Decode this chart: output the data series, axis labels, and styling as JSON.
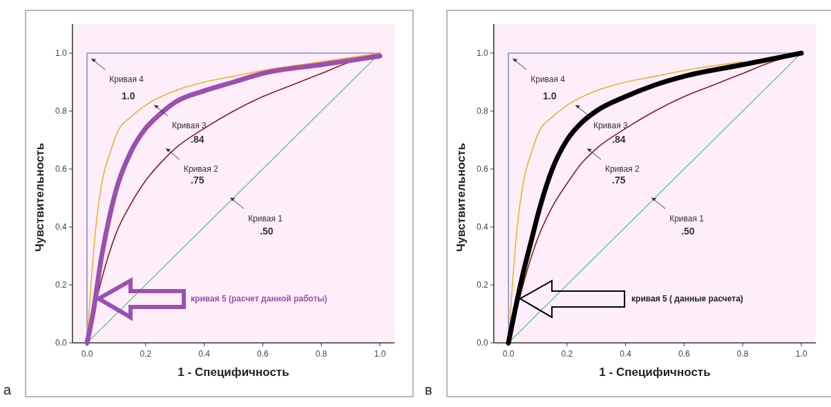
{
  "chart_data": [
    {
      "type": "line",
      "xlabel": "1 - Специфичность",
      "ylabel": "Чувствительность",
      "xlim": [
        -0.05,
        1.05
      ],
      "ylim": [
        0,
        1.1
      ],
      "xticks": [
        {
          "value": 0,
          "label": "0.0"
        },
        {
          "value": 0.2,
          "label": "0.2"
        },
        {
          "value": 0.4,
          "label": "0.4"
        },
        {
          "value": 0.6,
          "label": "0.6"
        },
        {
          "value": 0.8,
          "label": "0.8"
        },
        {
          "value": 1,
          "label": "1.0"
        }
      ],
      "yticks": [
        {
          "value": 0,
          "label": "0.0"
        },
        {
          "value": 0.2,
          "label": "0.2"
        },
        {
          "value": 0.4,
          "label": "0.4"
        },
        {
          "value": 0.6,
          "label": "0.6"
        },
        {
          "value": 0.8,
          "label": "0.8"
        },
        {
          "value": 1,
          "label": "1.0"
        }
      ],
      "line_style": "solid",
      "series": [
        {
          "color": "#6fcf8f",
          "x": [
            0,
            1
          ],
          "values": [
            0,
            1
          ]
        },
        {
          "color": "#7f90d0",
          "x": [
            0,
            0,
            1
          ],
          "values": [
            0,
            1,
            1
          ]
        },
        {
          "color": "#8b1a1a",
          "x": [
            0,
            0.02,
            0.05,
            0.1,
            0.15,
            0.2,
            0.25,
            0.3,
            0.4,
            0.5,
            0.6,
            0.7,
            0.8,
            0.9,
            1
          ],
          "values": [
            0,
            null,
            0.22,
            0.38,
            0.48,
            0.56,
            0.62,
            0.67,
            0.74,
            0.8,
            0.85,
            0.89,
            0.93,
            0.97,
            1
          ]
        },
        {
          "color": "#f0b030",
          "x": [
            0,
            0.01,
            0.03,
            0.05,
            0.08,
            0.1,
            0.15,
            0.2,
            0.3,
            0.4,
            0.5,
            0.6,
            0.8,
            1
          ],
          "values": [
            0,
            0.15,
            0.4,
            0.55,
            0.66,
            0.72,
            0.78,
            0.82,
            0.87,
            0.9,
            0.92,
            0.94,
            0.97,
            1
          ]
        },
        {
          "color": "#9b4fb0",
          "x": [
            0,
            0.02,
            0.05,
            0.08,
            0.1,
            0.15,
            0.2,
            0.25,
            0.3,
            0.4,
            0.5,
            0.6,
            0.8,
            1
          ],
          "values": [
            0,
            0.1,
            0.3,
            0.45,
            0.53,
            0.66,
            0.74,
            0.79,
            0.83,
            0.87,
            0.9,
            0.93,
            0.96,
            0.99
          ]
        }
      ],
      "annotations": [
        "Кривая 4",
        "1.0",
        "Кривая 3",
        ".84",
        "Кривая 2",
        ".75",
        "Кривая 1",
        ".50",
        "кривая 5 (расчет данной работы)",
        "а"
      ]
    },
    {
      "type": "line",
      "xlabel": "1 - Специфичность",
      "ylabel": "Чувствительность",
      "xlim": [
        -0.05,
        1.05
      ],
      "ylim": [
        0,
        1.1
      ],
      "xticks": [
        {
          "value": 0,
          "label": "0.0"
        },
        {
          "value": 0.2,
          "label": "0.2"
        },
        {
          "value": 0.4,
          "label": "0.4"
        },
        {
          "value": 0.6,
          "label": "0.6"
        },
        {
          "value": 0.8,
          "label": "0.8"
        },
        {
          "value": 1,
          "label": "1.0"
        }
      ],
      "yticks": [
        {
          "value": 0,
          "label": "0.0"
        },
        {
          "value": 0.2,
          "label": "0.2"
        },
        {
          "value": 0.4,
          "label": "0.4"
        },
        {
          "value": 0.6,
          "label": "0.6"
        },
        {
          "value": 0.8,
          "label": "0.8"
        },
        {
          "value": 1,
          "label": "1.0"
        }
      ],
      "line_style": "solid",
      "series": [
        {
          "color": "#6fcf8f",
          "x": [
            0,
            1
          ],
          "values": [
            0,
            1
          ]
        },
        {
          "color": "#7f90d0",
          "x": [
            0,
            0,
            1
          ],
          "values": [
            0,
            1,
            1
          ]
        },
        {
          "color": "#8b1a1a",
          "x": [
            0,
            0.02,
            0.05,
            0.1,
            0.15,
            0.2,
            0.25,
            0.3,
            0.4,
            0.5,
            0.6,
            0.7,
            0.8,
            0.9,
            1
          ],
          "values": [
            0,
            0.08,
            0.2,
            0.36,
            0.47,
            0.55,
            0.62,
            0.67,
            0.74,
            0.8,
            0.85,
            0.89,
            0.93,
            0.97,
            1
          ]
        },
        {
          "color": "#f0b030",
          "x": [
            0,
            0.01,
            0.03,
            0.05,
            0.08,
            0.1,
            0.15,
            0.2,
            0.3,
            0.4,
            0.5,
            0.6,
            0.8
          ],
          "values": [
            0,
            0.15,
            0.4,
            0.55,
            0.66,
            0.72,
            0.78,
            0.82,
            0.87,
            0.9,
            0.92,
            0.94,
            0.97
          ]
        },
        {
          "color": "#000000",
          "x": [
            0,
            0.02,
            0.05,
            0.08,
            0.1,
            0.15,
            0.2,
            0.25,
            0.3,
            0.4,
            0.5,
            0.6,
            0.8,
            1
          ],
          "values": [
            0,
            0.1,
            0.24,
            0.36,
            0.44,
            0.6,
            0.7,
            0.76,
            0.8,
            0.85,
            0.89,
            0.92,
            0.96,
            1
          ]
        }
      ],
      "annotations": [
        "Кривая 4",
        "1.0",
        "Кривая 3",
        ".84",
        "Кривая 2",
        ".75",
        "Кривая 1",
        ".50",
        "кривая 5 ( данные расчета)",
        "в"
      ]
    }
  ]
}
